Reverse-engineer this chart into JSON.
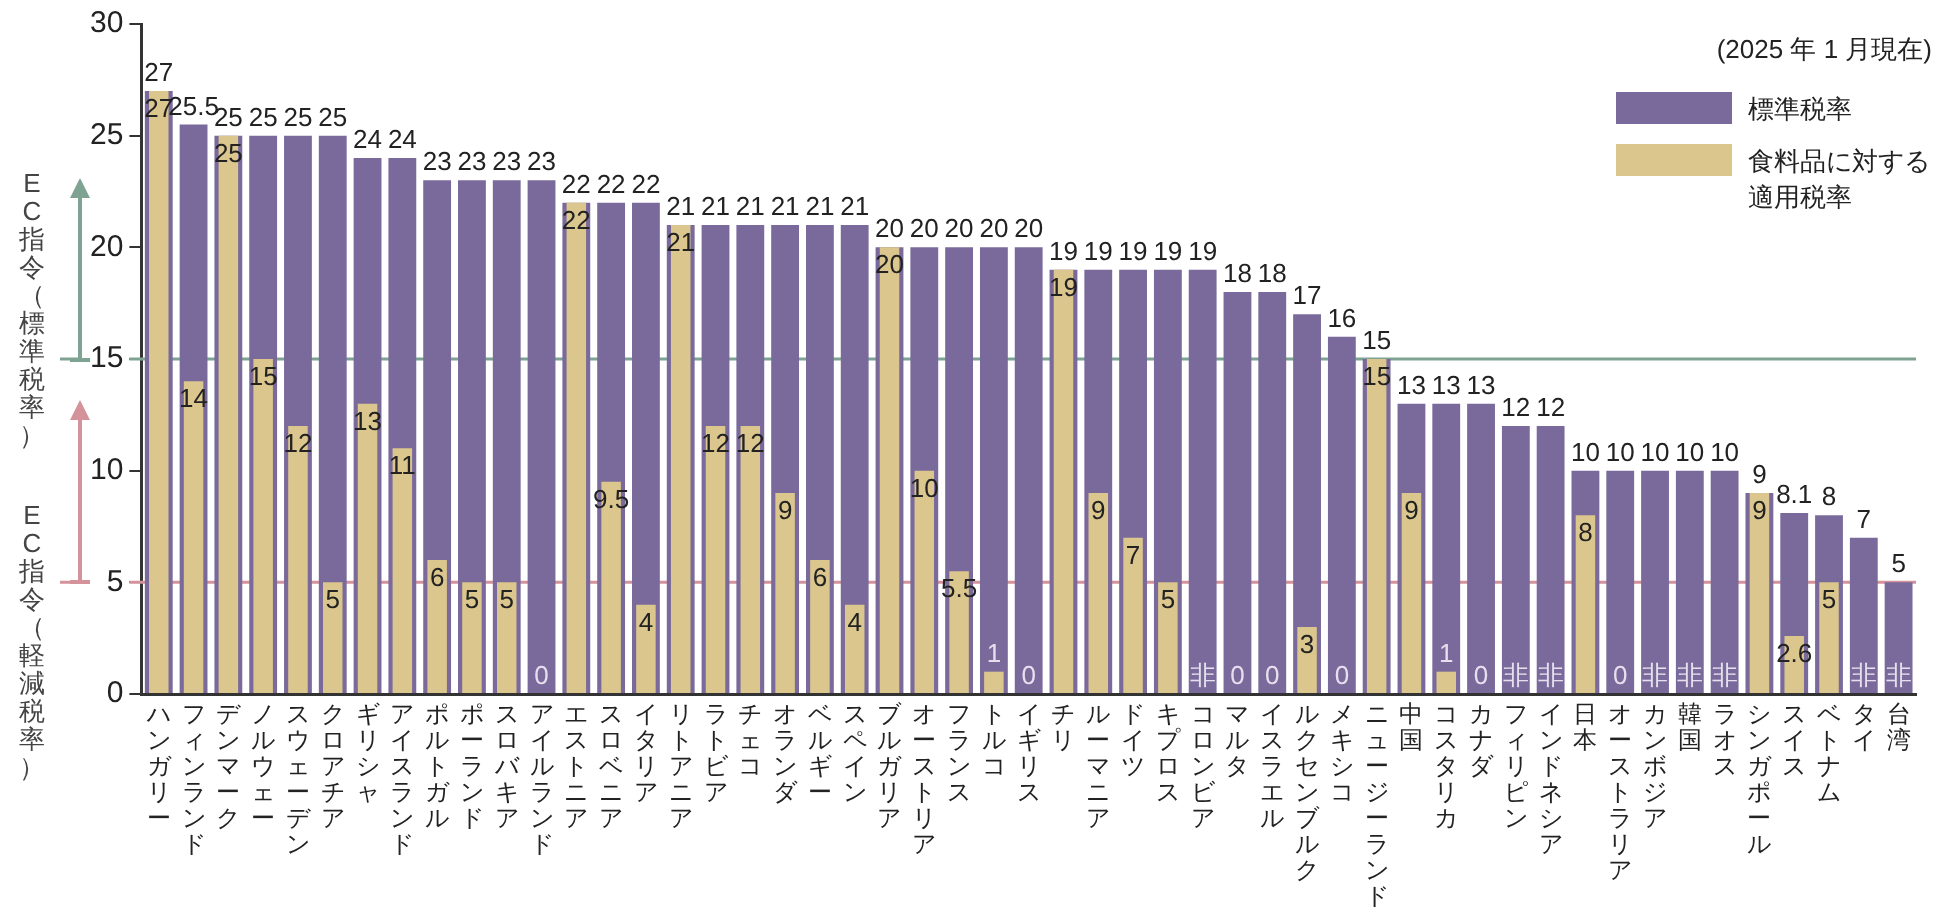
{
  "chart_data": {
    "type": "bar",
    "categories": [
      "ハンガリー",
      "フィンランド",
      "デンマーク",
      "ノルウェー",
      "スウェーデン",
      "クロアチア",
      "ギリシャ",
      "アイスランド",
      "ポルトガル",
      "ポーランド",
      "スロバキア",
      "アイルランド",
      "エストニア",
      "スロベニア",
      "イタリア",
      "リトアニア",
      "ラトビア",
      "チェコ",
      "オランダ",
      "ベルギー",
      "スペイン",
      "ブルガリア",
      "オーストリア",
      "フランス",
      "トルコ",
      "イギリス",
      "チリ",
      "ルーマニア",
      "ドイツ",
      "キプロス",
      "コロンビア",
      "マルタ",
      "イスラエル",
      "ルクセンブルク",
      "メキシコ",
      "ニュージーランド",
      "中国",
      "コスタリカ",
      "カナダ",
      "フィリピン",
      "インドネシア",
      "日本",
      "オーストラリア",
      "カンボジア",
      "韓国",
      "ラオス",
      "シンガポール",
      "スイス",
      "ベトナム",
      "タイ",
      "台湾"
    ],
    "series": [
      {
        "name": "標準税率",
        "color": "#7a6a9c",
        "values": [
          27,
          25.5,
          25,
          25,
          25,
          25,
          24,
          24,
          23,
          23,
          23,
          23,
          22,
          22,
          22,
          21,
          21,
          21,
          21,
          21,
          21,
          20,
          20,
          20,
          20,
          20,
          19,
          19,
          19,
          19,
          19,
          18,
          18,
          17,
          16,
          15,
          13,
          13,
          13,
          12,
          12,
          10,
          10,
          10,
          10,
          10,
          9,
          8.1,
          8,
          7,
          5
        ],
        "value_labels": [
          "27",
          "25.5",
          "25",
          "25",
          "25",
          "25",
          "24",
          "24",
          "23",
          "23",
          "23",
          "23",
          "22",
          "22",
          "22",
          "21",
          "21",
          "21",
          "21",
          "21",
          "21",
          "20",
          "20",
          "20",
          "20",
          "20",
          "19",
          "19",
          "19",
          "19",
          "19",
          "18",
          "18",
          "17",
          "16",
          "15",
          "13",
          "13",
          "13",
          "12",
          "12",
          "10",
          "10",
          "10",
          "10",
          "10",
          "9",
          "8.1",
          "8",
          "7",
          "5"
        ]
      },
      {
        "name": "食料品に対する適用税率",
        "color": "#dbc78d",
        "values": [
          27,
          14,
          25,
          15,
          12,
          5,
          13,
          11,
          6,
          5,
          5,
          0,
          22,
          9.5,
          4,
          21,
          12,
          12,
          9,
          6,
          4,
          20,
          10,
          5.5,
          1,
          0,
          19,
          9,
          7,
          5,
          null,
          0,
          0,
          3,
          0,
          15,
          9,
          1,
          0,
          null,
          null,
          8,
          0,
          null,
          null,
          null,
          9,
          2.6,
          5,
          null,
          null
        ],
        "value_labels": [
          "27",
          "14",
          "25",
          "15",
          "12",
          "5",
          "13",
          "11",
          "6",
          "5",
          "5",
          "0",
          "22",
          "9.5",
          "4",
          "21",
          "12",
          "12",
          "9",
          "6",
          "4",
          "20",
          "10",
          "5.5",
          "1",
          "0",
          "19",
          "9",
          "7",
          "5",
          "非",
          "0",
          "0",
          "3",
          "0",
          "15",
          "9",
          "1",
          "0",
          "非",
          "非",
          "8",
          "0",
          "非",
          "非",
          "非",
          "9",
          "2.6",
          "5",
          "非",
          "非"
        ]
      }
    ],
    "ylim": [
      0,
      30
    ],
    "yticks": [
      0,
      5,
      10,
      15,
      20,
      25,
      30
    ],
    "grid": false,
    "legend": "top right",
    "ref_lines": [
      {
        "axis": "y",
        "value": 15,
        "label": "EC指令（標準税率）",
        "color": "#7fa393"
      },
      {
        "axis": "y",
        "value": 5,
        "label": "EC指令（軽減税率）",
        "color": "#d4939a"
      }
    ],
    "annotations": [
      "(2025 年 1 月現在)"
    ]
  }
}
